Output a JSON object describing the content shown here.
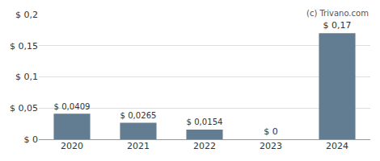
{
  "chart_data": {
    "type": "bar",
    "categories": [
      "2020",
      "2021",
      "2022",
      "2023",
      "2024"
    ],
    "values": [
      0.0409,
      0.0265,
      0.0154,
      0,
      0.17
    ],
    "value_labels": [
      "$ 0,0409",
      "$ 0,0265",
      "$ 0,0154",
      "$ 0",
      "$ 0,17"
    ],
    "data_labels": true,
    "color": "#627d91",
    "ylim": [
      0,
      0.2
    ],
    "yticks": [
      {
        "value": 0,
        "label": "$ 0"
      },
      {
        "value": 0.05,
        "label": "$ 0,05"
      },
      {
        "value": 0.1,
        "label": "$ 0,1"
      },
      {
        "value": 0.15,
        "label": "$ 0,15"
      },
      {
        "value": 0.2,
        "label": "$ 0,2"
      }
    ],
    "grid": true,
    "annotations": [
      "(c) Trivano.com"
    ]
  }
}
